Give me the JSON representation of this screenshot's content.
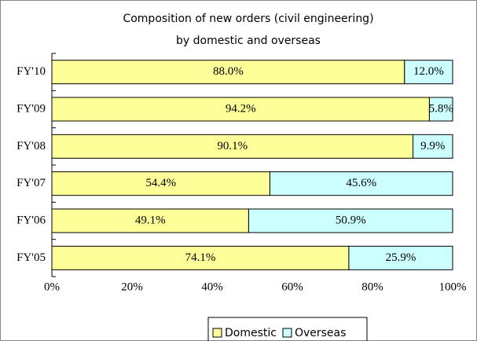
{
  "chart_data": {
    "type": "stacked_barh",
    "title": [
      "Composition of new orders (civil engineering)",
      "by domestic and overseas"
    ],
    "categories": [
      "FY'10",
      "FY'09",
      "FY'08",
      "FY'07",
      "FY'06",
      "FY'05"
    ],
    "series": [
      {
        "name": "Domestic",
        "color": "#ffff99",
        "values": [
          88.0,
          94.2,
          90.1,
          54.4,
          49.1,
          74.1
        ],
        "value_labels": [
          "88.0%",
          "94.2%",
          "90.1%",
          "54.4%",
          "49.1%",
          "74.1%"
        ]
      },
      {
        "name": "Overseas",
        "color": "#ccffff",
        "values": [
          12.0,
          5.8,
          9.9,
          45.6,
          50.9,
          25.9
        ],
        "value_labels": [
          "12.0%",
          "5.8%",
          "9.9%",
          "45.6%",
          "50.9%",
          "25.9%"
        ]
      }
    ],
    "xlim": [
      0,
      100
    ],
    "xticks": [
      {
        "value": 0,
        "label": "0%"
      },
      {
        "value": 20,
        "label": "20%"
      },
      {
        "value": 40,
        "label": "40%"
      },
      {
        "value": 60,
        "label": "60%"
      },
      {
        "value": 80,
        "label": "80%"
      },
      {
        "value": 100,
        "label": "100%"
      }
    ],
    "legend": "bottom"
  }
}
